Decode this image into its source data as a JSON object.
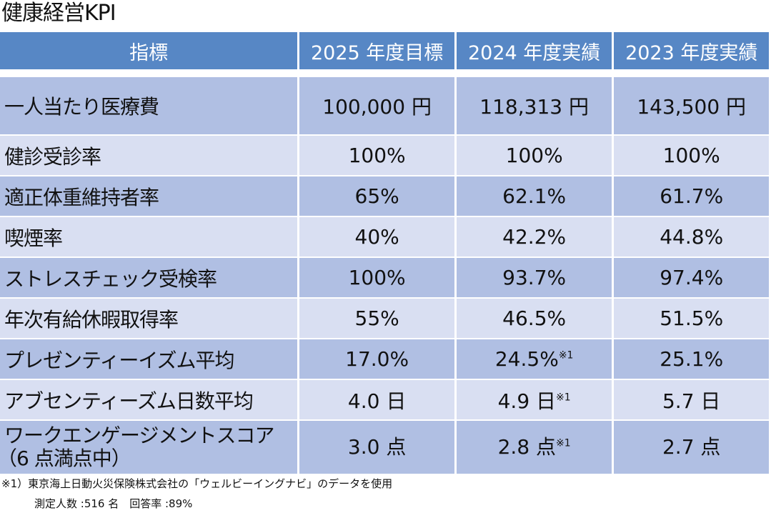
{
  "title": "健康経営KPI",
  "headers": [
    "指標",
    "2025 年度目標",
    "2024 年度実績",
    "2023 年度実績"
  ],
  "rows": [
    {
      "label": "一人当たり医療費",
      "t2025": "100,000 円",
      "a2024": "118,313 円",
      "a2023": "143,500 円"
    },
    {
      "label": "健診受診率",
      "t2025": "100%",
      "a2024": "100%",
      "a2023": "100%"
    },
    {
      "label": "適正体重維持者率",
      "t2025": "65%",
      "a2024": "62.1%",
      "a2023": "61.7%"
    },
    {
      "label": "喫煙率",
      "t2025": "40%",
      "a2024": "42.2%",
      "a2023": "44.8%"
    },
    {
      "label": "ストレスチェック受検率",
      "t2025": "100%",
      "a2024": "93.7%",
      "a2023": "97.4%"
    },
    {
      "label": "年次有給休暇取得率",
      "t2025": "55%",
      "a2024": "46.5%",
      "a2023": "51.5%"
    },
    {
      "label": "プレゼンティーイズム平均",
      "t2025": "17.0%",
      "a2024": "24.5%",
      "a2024_note": "※1",
      "a2023": "25.1%"
    },
    {
      "label": "アブセンティーズム日数平均",
      "t2025": "4.0 日",
      "a2024": "4.9 日",
      "a2024_note": "※1",
      "a2023": "5.7 日"
    },
    {
      "label": "ワークエンゲージメントスコア",
      "label2": "（6 点満点中）",
      "t2025": "3.0 点",
      "a2024": "2.8 点",
      "a2024_note": "※1",
      "a2023": "2.7 点"
    }
  ],
  "footnote": {
    "line1": "※1）東京海上日動火災保険株式会社の「ウェルビーイングナビ」のデータを使用",
    "line2": "測定人数 :516 名　回答率 :89%"
  },
  "colors": {
    "header": "#5787C5",
    "row_dark": "#B0BFE3",
    "row_light": "#D9DFF2"
  }
}
